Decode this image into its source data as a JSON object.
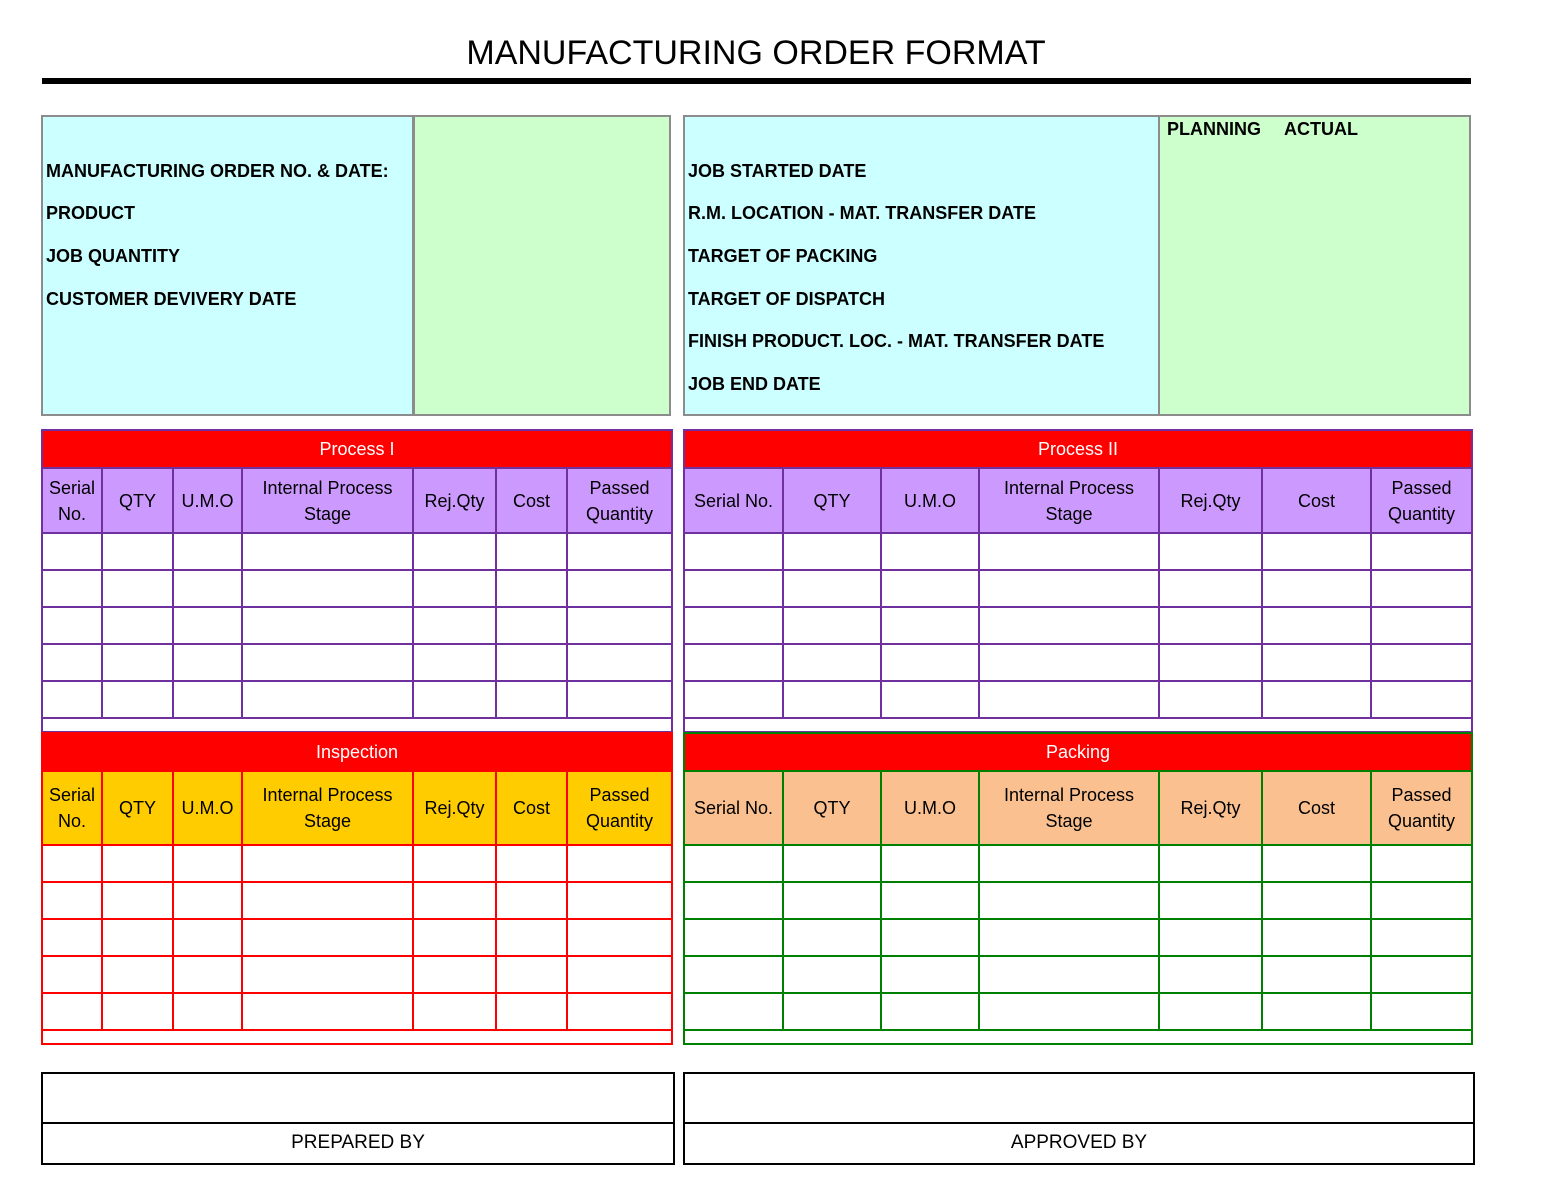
{
  "title": "MANUFACTURING ORDER FORMAT",
  "info": {
    "left_labels": [
      "MANUFACTURING ORDER NO.  & DATE:",
      "PRODUCT",
      "JOB QUANTITY",
      "CUSTOMER DEVIVERY DATE"
    ],
    "right_labels": [
      "JOB STARTED DATE",
      "R.M. LOCATION - MAT. TRANSFER DATE",
      "TARGET OF PACKING",
      "TARGET OF DISPATCH",
      "FINISH PRODUCT. LOC. - MAT. TRANSFER DATE",
      "JOB END DATE"
    ],
    "planning_label": "PLANNING",
    "actual_label": "ACTUAL"
  },
  "columns_narrow": [
    "Serial No.",
    "QTY",
    "U.M.O",
    "Internal Process Stage",
    "Rej.Qty",
    "Cost",
    "Passed Quantity"
  ],
  "columns_wide": [
    "Serial No.",
    "QTY",
    "U.M.O",
    "Internal Process Stage",
    "Rej.Qty",
    "Cost",
    "Passed Quantity"
  ],
  "tables": {
    "process1": {
      "title": "Process I"
    },
    "process2": {
      "title": "Process II"
    },
    "inspection": {
      "title": "Inspection"
    },
    "packing": {
      "title": "Packing"
    }
  },
  "signatures": {
    "prepared_by": "PREPARED BY",
    "approved_by": "APPROVED BY"
  },
  "colors": {
    "banner": "#ff0000",
    "info_label_bg": "#ccffff",
    "info_value_bg": "#ccffcc",
    "process_header": "#cc99ff",
    "process_border": "#7030a0",
    "inspection_header": "#ffcc00",
    "inspection_border": "#ff0000",
    "packing_header": "#fac090",
    "packing_border": "#008000"
  }
}
